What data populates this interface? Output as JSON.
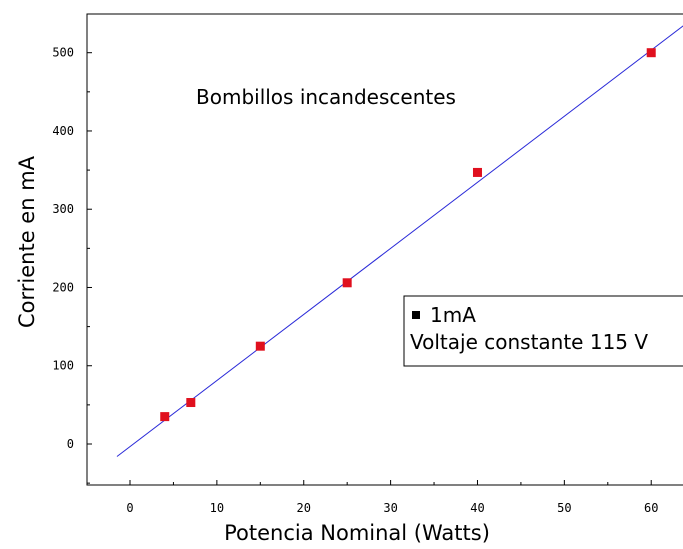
{
  "chart_data": {
    "type": "scatter",
    "xlabel": "Potencia Nominal (Watts)",
    "ylabel": "Corriente en mA",
    "annotation": "Bombillos incandescentes",
    "xlim": [
      -5,
      64
    ],
    "ylim": [
      -50,
      550
    ],
    "x_ticks": [
      0,
      10,
      20,
      30,
      40,
      50,
      60
    ],
    "y_ticks": [
      0,
      100,
      200,
      300,
      400,
      500
    ],
    "grid": false,
    "series": [
      {
        "name": "1mA",
        "marker": "square",
        "color": "#e0101e",
        "x": [
          4,
          7,
          15,
          25,
          40,
          60
        ],
        "y": [
          35,
          53,
          125,
          206,
          347,
          500
        ]
      }
    ],
    "fit_line": {
      "color": "#2a2ad8",
      "x": [
        -1.5,
        64
      ],
      "y": [
        -16,
        537
      ]
    },
    "legend": {
      "placement": "right",
      "entries": [
        "1mA",
        "Voltaje constante 115 V"
      ]
    }
  }
}
